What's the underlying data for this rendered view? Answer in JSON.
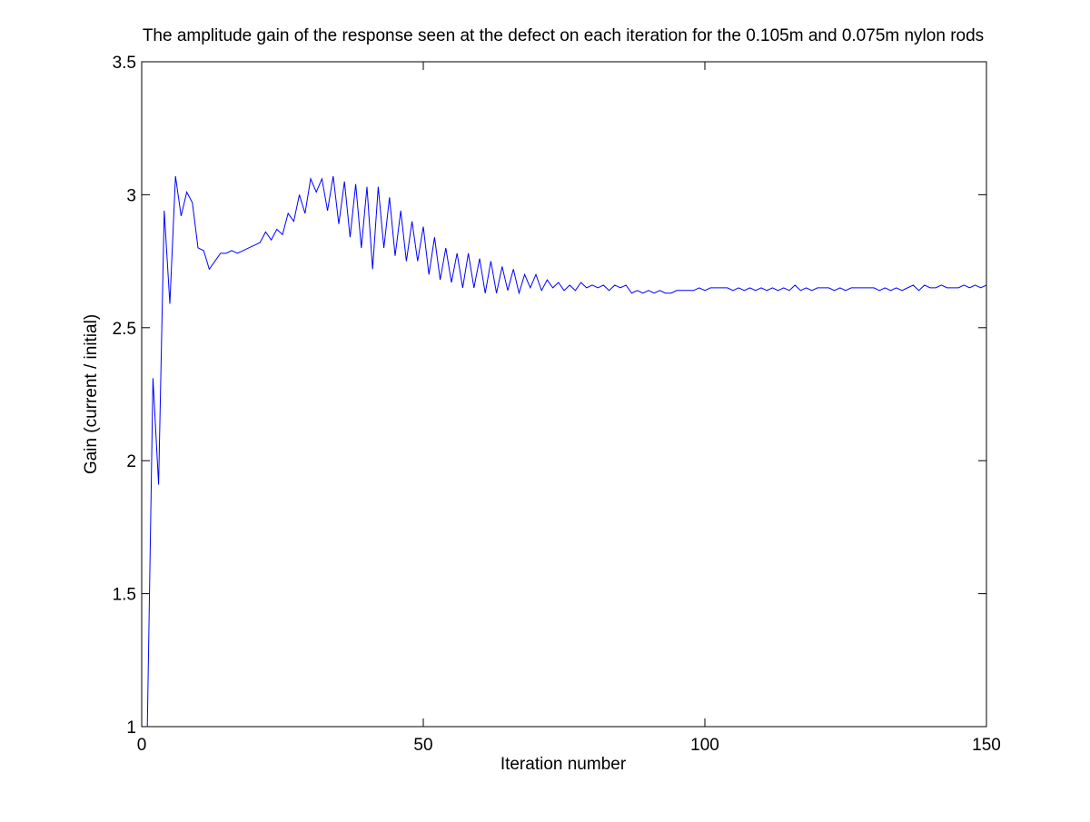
{
  "chart_data": {
    "type": "line",
    "title": "The amplitude gain of the response seen at the defect on each iteration for the 0.105m and 0.075m nylon rods",
    "x_label": "Iteration number",
    "y_label": "Gain (current / initial)",
    "color": "#0000ff",
    "xlim": [
      0,
      150
    ],
    "ylim": [
      1,
      3.5
    ],
    "xticks": [
      0,
      50,
      100,
      150
    ],
    "yticks": [
      1,
      1.5,
      2,
      2.5,
      3,
      3.5
    ],
    "x": [
      1,
      2,
      3,
      4,
      5,
      6,
      7,
      8,
      9,
      10,
      11,
      12,
      13,
      14,
      15,
      16,
      17,
      18,
      19,
      20,
      21,
      22,
      23,
      24,
      25,
      26,
      27,
      28,
      29,
      30,
      31,
      32,
      33,
      34,
      35,
      36,
      37,
      38,
      39,
      40,
      41,
      42,
      43,
      44,
      45,
      46,
      47,
      48,
      49,
      50,
      51,
      52,
      53,
      54,
      55,
      56,
      57,
      58,
      59,
      60,
      61,
      62,
      63,
      64,
      65,
      66,
      67,
      68,
      69,
      70,
      71,
      72,
      73,
      74,
      75,
      76,
      77,
      78,
      79,
      80,
      81,
      82,
      83,
      84,
      85,
      86,
      87,
      88,
      89,
      90,
      91,
      92,
      93,
      94,
      95,
      96,
      97,
      98,
      99,
      100,
      101,
      102,
      103,
      104,
      105,
      106,
      107,
      108,
      109,
      110,
      111,
      112,
      113,
      114,
      115,
      116,
      117,
      118,
      119,
      120,
      121,
      122,
      123,
      124,
      125,
      126,
      127,
      128,
      129,
      130,
      131,
      132,
      133,
      134,
      135,
      136,
      137,
      138,
      139,
      140,
      141,
      142,
      143,
      144,
      145,
      146,
      147,
      148,
      149,
      150
    ],
    "values": [
      1,
      2.31,
      1.91,
      2.94,
      2.59,
      3.07,
      2.92,
      3.01,
      2.97,
      2.8,
      2.79,
      2.72,
      2.75,
      2.78,
      2.78,
      2.79,
      2.78,
      2.79,
      2.8,
      2.81,
      2.82,
      2.86,
      2.83,
      2.87,
      2.85,
      2.93,
      2.9,
      3.0,
      2.93,
      3.06,
      3.01,
      3.06,
      2.94,
      3.07,
      2.89,
      3.05,
      2.84,
      3.04,
      2.8,
      3.03,
      2.72,
      3.03,
      2.8,
      2.99,
      2.77,
      2.94,
      2.75,
      2.9,
      2.75,
      2.88,
      2.7,
      2.84,
      2.68,
      2.8,
      2.67,
      2.78,
      2.65,
      2.78,
      2.65,
      2.76,
      2.63,
      2.75,
      2.63,
      2.73,
      2.64,
      2.72,
      2.63,
      2.7,
      2.65,
      2.7,
      2.64,
      2.68,
      2.65,
      2.67,
      2.64,
      2.66,
      2.64,
      2.67,
      2.65,
      2.66,
      2.65,
      2.66,
      2.64,
      2.66,
      2.65,
      2.66,
      2.63,
      2.64,
      2.63,
      2.64,
      2.63,
      2.64,
      2.63,
      2.63,
      2.64,
      2.64,
      2.64,
      2.64,
      2.65,
      2.64,
      2.65,
      2.65,
      2.65,
      2.65,
      2.64,
      2.65,
      2.64,
      2.65,
      2.64,
      2.65,
      2.64,
      2.65,
      2.64,
      2.65,
      2.64,
      2.66,
      2.64,
      2.65,
      2.64,
      2.65,
      2.65,
      2.65,
      2.64,
      2.65,
      2.64,
      2.65,
      2.65,
      2.65,
      2.65,
      2.65,
      2.64,
      2.65,
      2.64,
      2.65,
      2.64,
      2.65,
      2.66,
      2.64,
      2.66,
      2.65,
      2.65,
      2.66,
      2.65,
      2.65,
      2.65,
      2.66,
      2.65,
      2.66,
      2.65,
      2.66
    ]
  }
}
